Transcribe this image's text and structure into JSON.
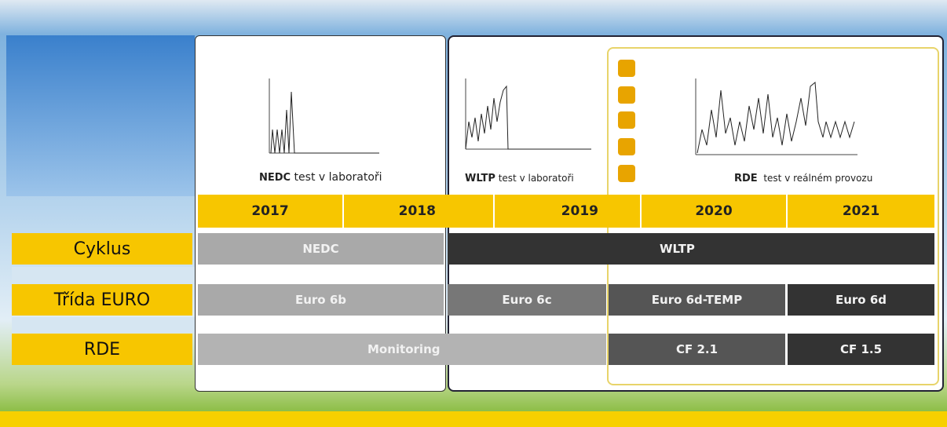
{
  "panels": [
    {
      "cycle": "NEDC",
      "caption": "test v laboratoři"
    },
    {
      "cycle": "WLTP",
      "caption": "test v laboratoři"
    },
    {
      "cycle": "RDE",
      "caption": "test v reálném provozu"
    }
  ],
  "years": [
    "2017",
    "2018",
    "2019",
    "2020",
    "2021"
  ],
  "rows": [
    {
      "label": "Cyklus",
      "cells": [
        "NEDC",
        "WLTP"
      ]
    },
    {
      "label": "Třída EURO",
      "cells": [
        "Euro 6b",
        "Euro 6c",
        "Euro 6d-TEMP",
        "Euro 6d"
      ]
    },
    {
      "label": "RDE",
      "cells": [
        "Monitoring",
        "CF 2.1",
        "CF 1.5"
      ]
    }
  ]
}
